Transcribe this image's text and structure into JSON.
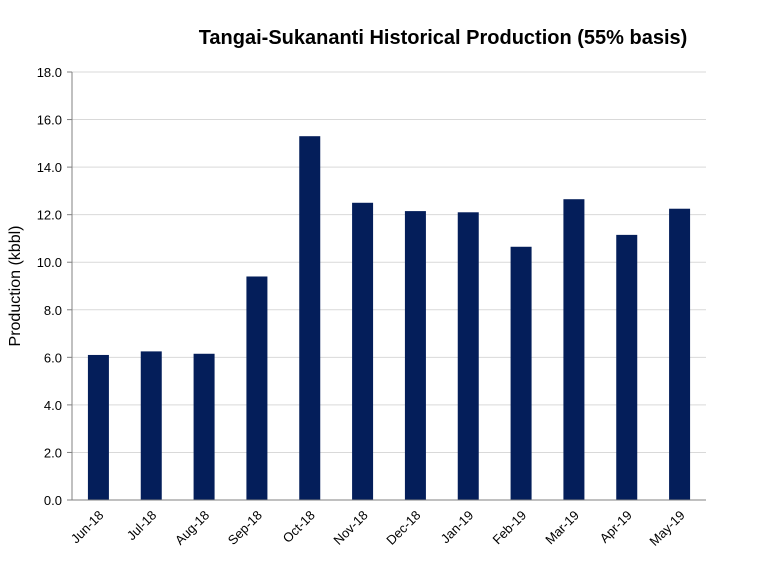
{
  "chart_data": {
    "type": "bar",
    "title": "Tangai-Sukananti Historical Production (55% basis)",
    "xlabel": "",
    "ylabel": "Production (kbbl)",
    "categories": [
      "Jun-18",
      "Jul-18",
      "Aug-18",
      "Sep-18",
      "Oct-18",
      "Nov-18",
      "Dec-18",
      "Jan-19",
      "Feb-19",
      "Mar-19",
      "Apr-19",
      "May-19"
    ],
    "values": [
      6.1,
      6.25,
      6.15,
      9.4,
      15.3,
      12.5,
      12.15,
      12.1,
      10.65,
      12.65,
      11.15,
      12.25
    ],
    "ylim": [
      0,
      18
    ],
    "yticks": [
      "0.0",
      "2.0",
      "4.0",
      "6.0",
      "8.0",
      "10.0",
      "12.0",
      "14.0",
      "16.0",
      "18.0"
    ],
    "grid": true,
    "bar_color": "#041e5a"
  }
}
